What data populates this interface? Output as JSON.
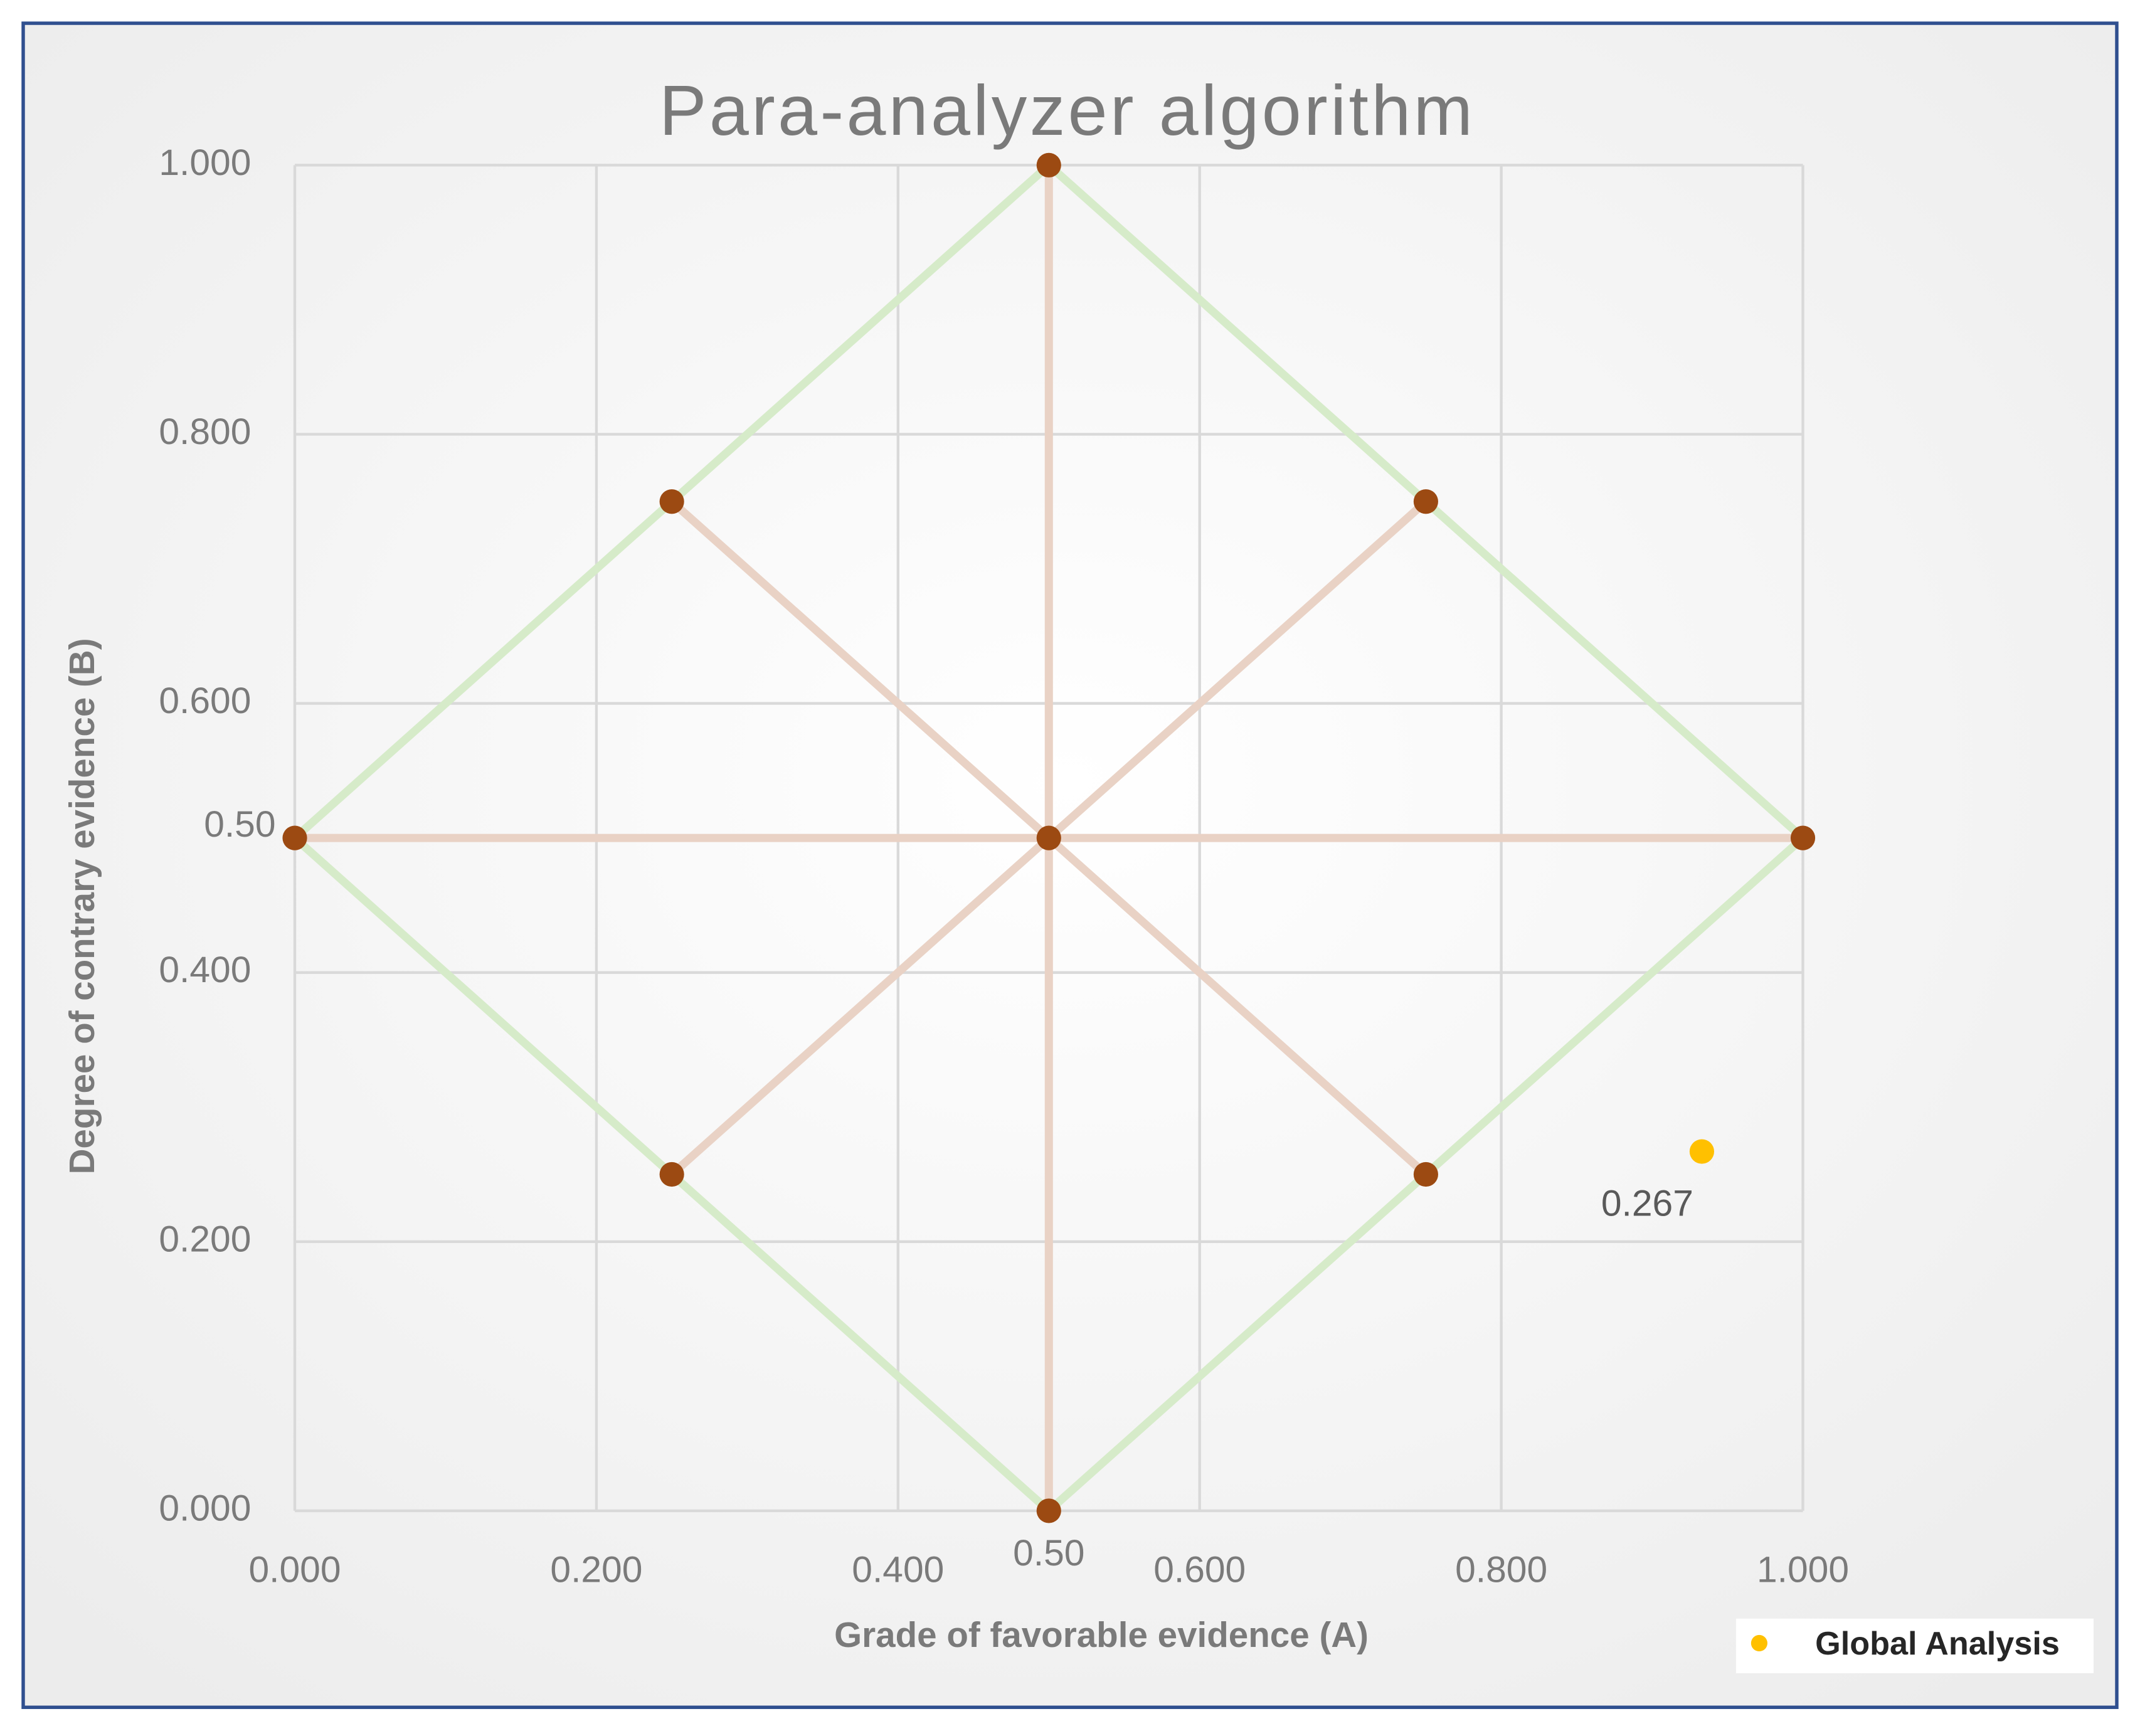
{
  "chart_data": {
    "type": "scatter",
    "title": "Para-analyzer algorithm",
    "xlabel": "Grade of favorable evidence (A)",
    "ylabel": "Degree of contrary evidence (B)",
    "xlim": [
      0,
      1
    ],
    "ylim": [
      0,
      1
    ],
    "xticks": [
      {
        "value": 0,
        "label": "0.000"
      },
      {
        "value": 0.2,
        "label": "0.200"
      },
      {
        "value": 0.4,
        "label": "0.400"
      },
      {
        "value": 0.5,
        "label": "0.50"
      },
      {
        "value": 0.6,
        "label": "0.600"
      },
      {
        "value": 0.8,
        "label": "0.800"
      },
      {
        "value": 1,
        "label": "1.000"
      }
    ],
    "yticks": [
      {
        "value": 0,
        "label": "0.000"
      },
      {
        "value": 0.2,
        "label": "0.200"
      },
      {
        "value": 0.4,
        "label": "0.400"
      },
      {
        "value": 0.5,
        "label": "0.50"
      },
      {
        "value": 0.6,
        "label": "0.600"
      },
      {
        "value": 0.8,
        "label": "0.800"
      },
      {
        "value": 1,
        "label": "1.000"
      }
    ],
    "grid": true,
    "legend": "bottom-right",
    "series": [
      {
        "color": "#d6ebc9",
        "line": true,
        "marker": false,
        "x": [
          0,
          0.5,
          1,
          0.5,
          0
        ],
        "y": [
          0.5,
          1,
          0.5,
          0,
          0.5
        ]
      },
      {
        "color": "#e9d2c5",
        "line": true,
        "marker": false,
        "x": [
          0,
          1,
          null,
          0.5,
          0.5,
          null,
          0.25,
          0.75,
          null,
          0.25,
          0.75
        ],
        "y": [
          0.5,
          0.5,
          null,
          0,
          1,
          null,
          0.75,
          0.25,
          null,
          0.25,
          0.75
        ]
      },
      {
        "color": "#9c4a12",
        "line": false,
        "marker": true,
        "x": [
          0,
          0.25,
          0.25,
          0.5,
          0.5,
          0.5,
          0.75,
          0.75,
          1
        ],
        "y": [
          0.5,
          0.75,
          0.25,
          1,
          0.5,
          0,
          0.75,
          0.25,
          0.5
        ]
      },
      {
        "name": "Global Analysis",
        "color": "#ffc000",
        "line": false,
        "marker": true,
        "data_labels": true,
        "x": [
          0.933
        ],
        "y": [
          0.267
        ]
      }
    ]
  }
}
